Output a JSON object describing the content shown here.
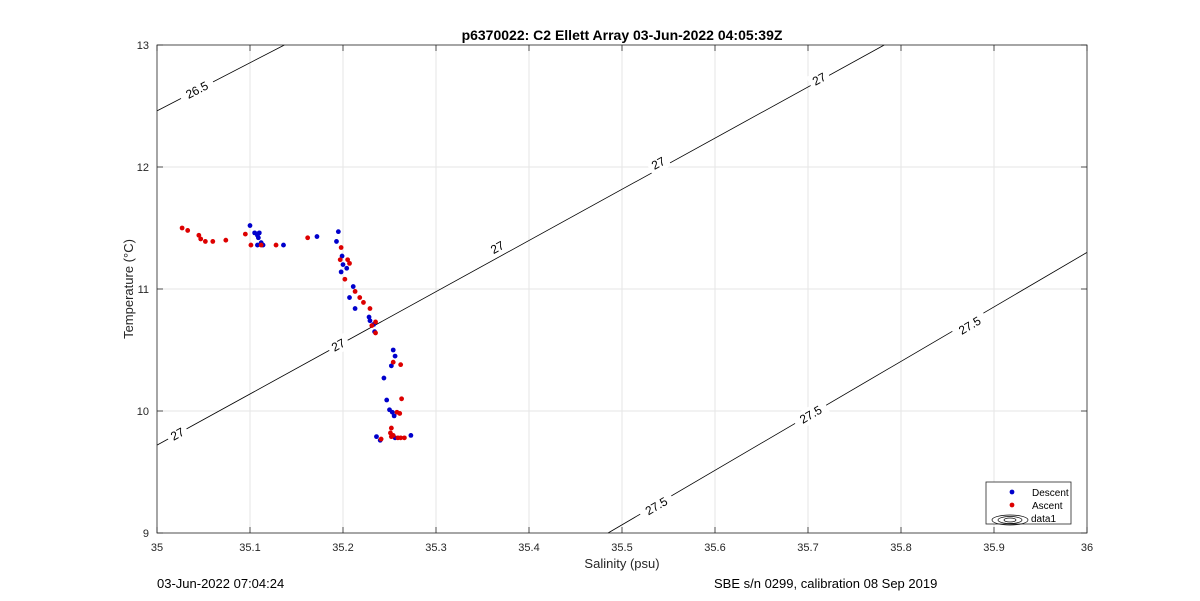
{
  "chart_data": {
    "type": "scatter",
    "title": "p6370022: C2 Ellett Array 03-Jun-2022 04:05:39Z",
    "xlabel": "Salinity (psu)",
    "ylabel": "Temperature (°C)",
    "xlim": [
      35,
      36
    ],
    "ylim": [
      9,
      13
    ],
    "xticks": [
      "35",
      "35.1",
      "35.2",
      "35.3",
      "35.4",
      "35.5",
      "35.6",
      "35.7",
      "35.8",
      "35.9",
      "36"
    ],
    "yticks": [
      "9",
      "10",
      "11",
      "12",
      "13"
    ],
    "grid": true,
    "legend_position": "bottom-right",
    "contours": [
      {
        "level": "26.5",
        "points": [
          [
            35.0,
            12.46
          ],
          [
            35.137,
            13.0
          ]
        ],
        "labels": [
          {
            "x": 35.043,
            "y": 12.63
          }
        ]
      },
      {
        "level": "27",
        "points": [
          [
            35.0,
            9.72
          ],
          [
            35.782,
            13.0
          ]
        ],
        "labels": [
          {
            "x": 35.022,
            "y": 9.81
          },
          {
            "x": 35.195,
            "y": 10.54
          },
          {
            "x": 35.366,
            "y": 11.34
          },
          {
            "x": 35.539,
            "y": 12.03
          },
          {
            "x": 35.712,
            "y": 12.72
          }
        ]
      },
      {
        "level": "27.5",
        "points": [
          [
            35.485,
            9.0
          ],
          [
            36.0,
            11.3
          ]
        ],
        "labels": [
          {
            "x": 35.537,
            "y": 9.22
          },
          {
            "x": 35.703,
            "y": 9.97
          },
          {
            "x": 35.874,
            "y": 10.7
          }
        ]
      }
    ],
    "series": [
      {
        "name": "Descent",
        "color": "#0000cc",
        "points": [
          [
            35.1,
            11.52
          ],
          [
            35.105,
            11.46
          ],
          [
            35.108,
            11.44
          ],
          [
            35.11,
            11.46
          ],
          [
            35.109,
            11.42
          ],
          [
            35.112,
            11.38
          ],
          [
            35.108,
            11.36
          ],
          [
            35.114,
            11.36
          ],
          [
            35.136,
            11.36
          ],
          [
            35.172,
            11.43
          ],
          [
            35.195,
            11.47
          ],
          [
            35.193,
            11.39
          ],
          [
            35.199,
            11.27
          ],
          [
            35.2,
            11.2
          ],
          [
            35.198,
            11.14
          ],
          [
            35.204,
            11.17
          ],
          [
            35.211,
            11.02
          ],
          [
            35.207,
            10.93
          ],
          [
            35.213,
            10.84
          ],
          [
            35.228,
            10.77
          ],
          [
            35.229,
            10.74
          ],
          [
            35.233,
            10.71
          ],
          [
            35.234,
            10.65
          ],
          [
            35.254,
            10.5
          ],
          [
            35.256,
            10.45
          ],
          [
            35.252,
            10.37
          ],
          [
            35.244,
            10.27
          ],
          [
            35.247,
            10.09
          ],
          [
            35.25,
            10.01
          ],
          [
            35.253,
            9.99
          ],
          [
            35.255,
            9.96
          ],
          [
            35.236,
            9.79
          ],
          [
            35.24,
            9.76
          ],
          [
            35.273,
            9.8
          ],
          [
            35.256,
            9.78
          ]
        ]
      },
      {
        "name": "Ascent",
        "color": "#dd0000",
        "points": [
          [
            35.027,
            11.5
          ],
          [
            35.033,
            11.48
          ],
          [
            35.045,
            11.44
          ],
          [
            35.047,
            11.41
          ],
          [
            35.052,
            11.39
          ],
          [
            35.06,
            11.39
          ],
          [
            35.074,
            11.4
          ],
          [
            35.095,
            11.45
          ],
          [
            35.101,
            11.36
          ],
          [
            35.112,
            11.36
          ],
          [
            35.128,
            11.36
          ],
          [
            35.162,
            11.42
          ],
          [
            35.198,
            11.34
          ],
          [
            35.197,
            11.24
          ],
          [
            35.205,
            11.24
          ],
          [
            35.207,
            11.21
          ],
          [
            35.202,
            11.08
          ],
          [
            35.213,
            10.98
          ],
          [
            35.218,
            10.93
          ],
          [
            35.222,
            10.89
          ],
          [
            35.229,
            10.84
          ],
          [
            35.235,
            10.73
          ],
          [
            35.231,
            10.7
          ],
          [
            35.235,
            10.64
          ],
          [
            35.254,
            10.4
          ],
          [
            35.262,
            10.38
          ],
          [
            35.263,
            10.1
          ],
          [
            35.258,
            9.99
          ],
          [
            35.261,
            9.98
          ],
          [
            35.252,
            9.86
          ],
          [
            35.251,
            9.82
          ],
          [
            35.254,
            9.8
          ],
          [
            35.259,
            9.78
          ],
          [
            35.262,
            9.78
          ],
          [
            35.266,
            9.78
          ],
          [
            35.252,
            9.79
          ],
          [
            35.241,
            9.77
          ]
        ]
      }
    ],
    "legend_entries": [
      "Descent",
      "Ascent",
      "data1"
    ]
  },
  "footer": {
    "left": "03-Jun-2022 07:04:24",
    "right": "SBE s/n 0299, calibration 08 Sep 2019"
  }
}
